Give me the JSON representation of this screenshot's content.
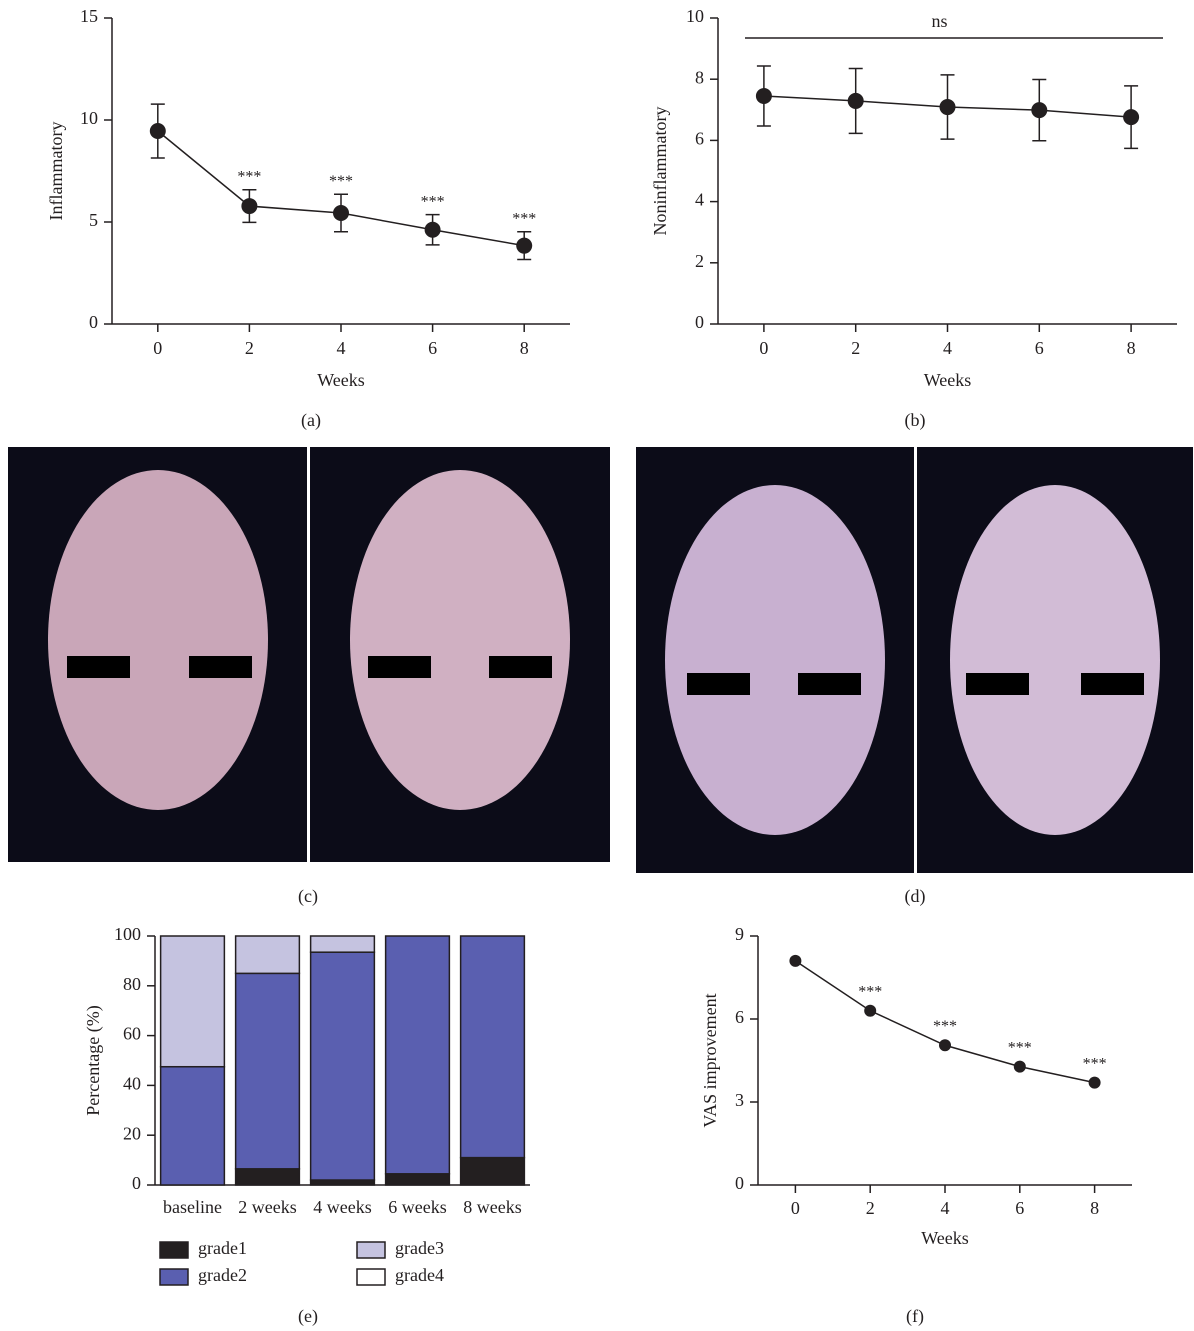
{
  "chart_data": [
    {
      "type": "line",
      "panel_label": "(a)",
      "x": [
        0,
        2,
        4,
        6,
        8
      ],
      "values": [
        9.46,
        5.78,
        5.44,
        4.62,
        3.84
      ],
      "errors": [
        1.32,
        0.8,
        0.92,
        0.74,
        0.68
      ],
      "point_labels": [
        null,
        "***",
        "***",
        "***",
        "***"
      ],
      "color": "#231f20",
      "xlim": [
        -1,
        9
      ],
      "xticks": [
        0,
        2,
        4,
        6,
        8
      ],
      "ylim": [
        0,
        15
      ],
      "yticks": [
        0,
        5,
        10,
        15
      ],
      "xlabel": "Weeks",
      "ylabel": "Inflammatory"
    },
    {
      "type": "line",
      "panel_label": "(b)",
      "x": [
        0,
        2,
        4,
        6,
        8
      ],
      "values": [
        7.45,
        7.29,
        7.09,
        6.99,
        6.76
      ],
      "errors": [
        0.98,
        1.06,
        1.05,
        1.0,
        1.02
      ],
      "annotation": "ns",
      "color": "#231f20",
      "xlim": [
        -1,
        9
      ],
      "xticks": [
        0,
        2,
        4,
        6,
        8
      ],
      "ylim": [
        0,
        10
      ],
      "yticks": [
        0,
        2,
        4,
        6,
        8,
        10
      ],
      "xlabel": "Weeks",
      "ylabel": "Noninflammatory"
    },
    {
      "type": "bar",
      "stacked": true,
      "panel_label": "(e)",
      "categories": [
        "baseline",
        "2 weeks",
        "4 weeks",
        "6 weeks",
        "8 weeks"
      ],
      "series": [
        {
          "name": "grade1",
          "color": "#231f20",
          "values": [
            0,
            6.5,
            2,
            4.5,
            11
          ]
        },
        {
          "name": "grade2",
          "color": "#5a5fb0",
          "values": [
            47.5,
            78.5,
            91.5,
            95.5,
            89
          ]
        },
        {
          "name": "grade3",
          "color": "#c5c3e0",
          "values": [
            52.5,
            15,
            6.5,
            0,
            0
          ]
        },
        {
          "name": "grade4",
          "color": "#ffffff",
          "values": [
            0,
            0,
            0,
            0,
            0
          ]
        }
      ],
      "ylim": [
        0,
        100
      ],
      "yticks": [
        0,
        20,
        40,
        60,
        80,
        100
      ],
      "ylabel": "Percentage (%)",
      "legend": "bottom"
    },
    {
      "type": "line",
      "panel_label": "(f)",
      "x": [
        0,
        2,
        4,
        6,
        8
      ],
      "values": [
        8.1,
        6.3,
        5.05,
        4.28,
        3.7
      ],
      "point_labels": [
        null,
        "***",
        "***",
        "***",
        "***"
      ],
      "color": "#231f20",
      "xlim": [
        -1,
        9
      ],
      "xticks": [
        0,
        2,
        4,
        6,
        8
      ],
      "ylim": [
        0,
        9
      ],
      "yticks": [
        0,
        3,
        6,
        9
      ],
      "xlabel": "Weeks",
      "ylabel": "VAS improvement"
    }
  ],
  "photo_panels": [
    {
      "label": "(c)"
    },
    {
      "label": "(d)"
    }
  ]
}
